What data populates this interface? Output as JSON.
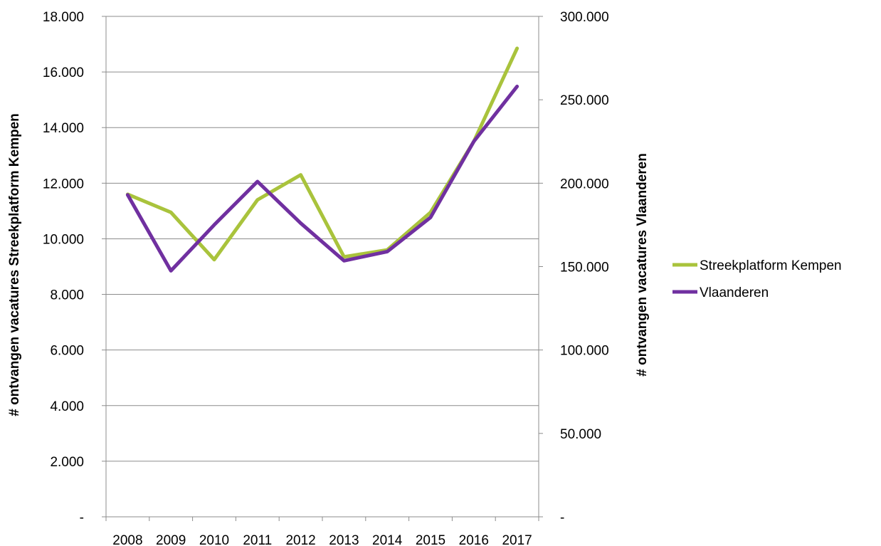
{
  "chart_data": {
    "type": "line",
    "categories": [
      "2008",
      "2009",
      "2010",
      "2011",
      "2012",
      "2013",
      "2014",
      "2015",
      "2016",
      "2017"
    ],
    "y_left": {
      "label": "# ontvangen vacatures Streekplatform Kempen",
      "range": [
        0,
        18000
      ],
      "ticks": [
        0,
        2000,
        4000,
        6000,
        8000,
        10000,
        12000,
        14000,
        16000,
        18000
      ],
      "tick_labels": [
        "-",
        "2.000",
        "4.000",
        "6.000",
        "8.000",
        "10.000",
        "12.000",
        "14.000",
        "16.000",
        "18.000"
      ]
    },
    "y_right": {
      "label": "# ontvangen vacatures Vlaanderen",
      "range": [
        0,
        300000
      ],
      "ticks": [
        0,
        50000,
        100000,
        150000,
        200000,
        250000,
        300000
      ],
      "tick_labels": [
        "-",
        "50.000",
        "100.000",
        "150.000",
        "200.000",
        "250.000",
        "300.000"
      ]
    },
    "grid": true,
    "legend_position": "right",
    "series": [
      {
        "name": "Streekplatform Kempen",
        "axis": "left",
        "color": "#A9C33C",
        "values": [
          11600,
          10950,
          9250,
          11400,
          12300,
          9350,
          9600,
          10950,
          13500,
          16850
        ]
      },
      {
        "name": "Vlaanderen",
        "axis": "right",
        "color": "#7030A0",
        "values": [
          193000,
          147500,
          175000,
          201000,
          176000,
          153500,
          159000,
          179500,
          225000,
          258000
        ]
      }
    ]
  }
}
